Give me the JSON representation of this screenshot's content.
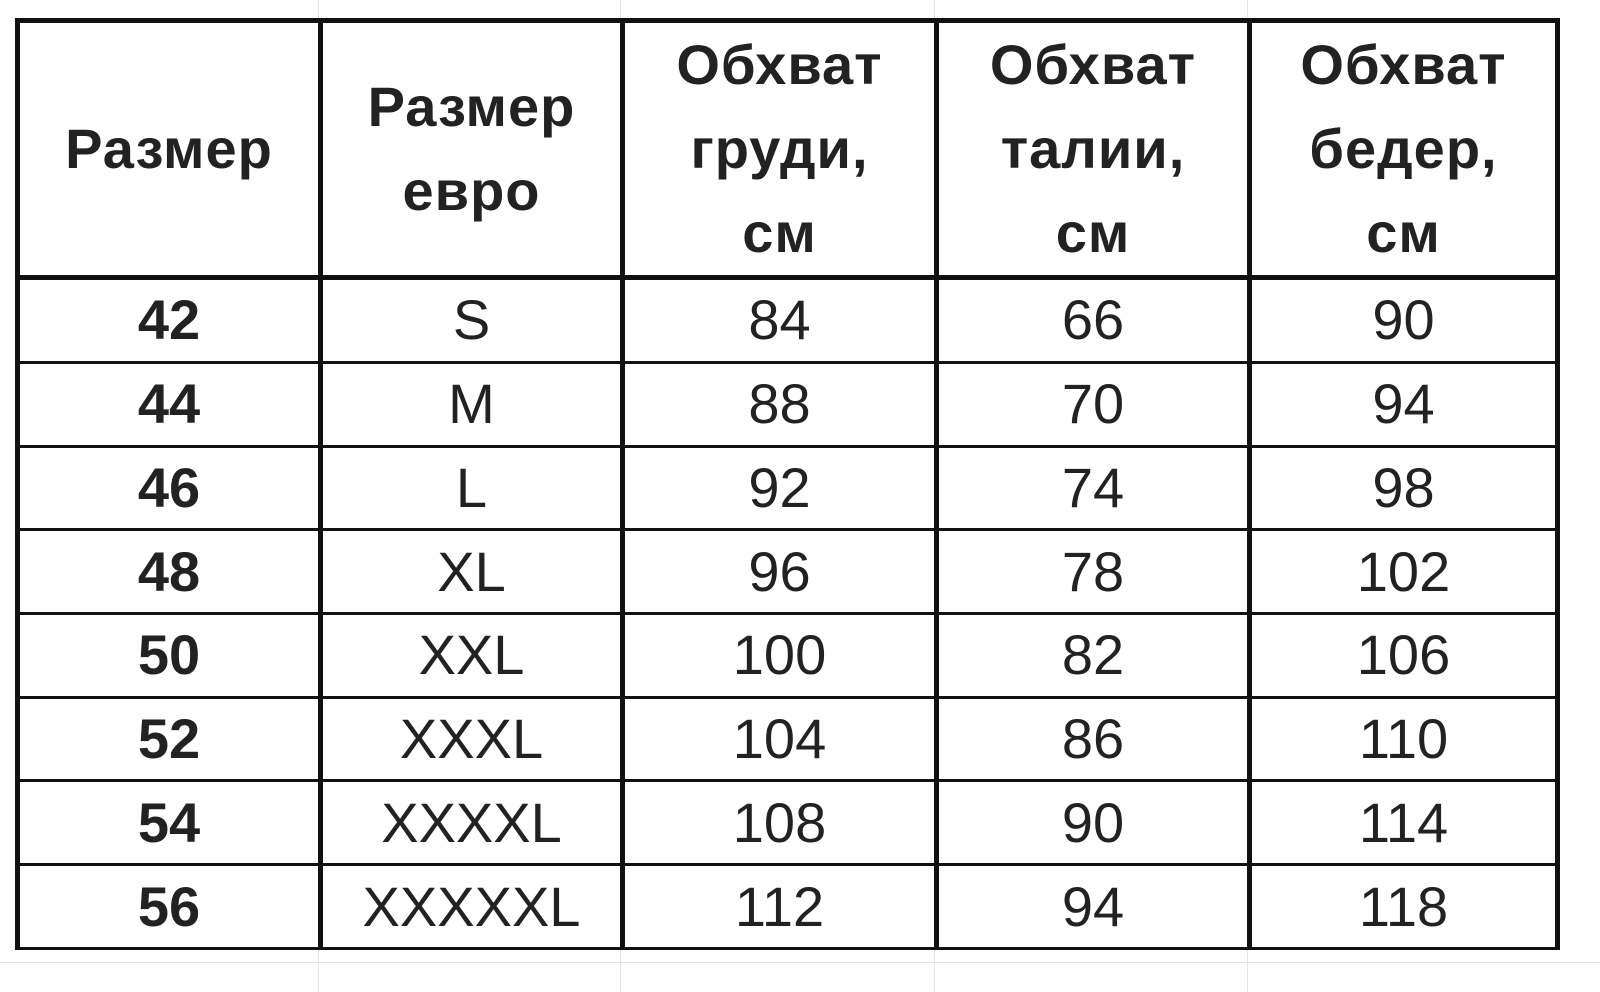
{
  "table": {
    "headers": [
      "Размер",
      "Размер евро",
      "Обхват груди, см",
      "Обхват талии, см",
      "Обхват бедер, см"
    ],
    "rows": [
      [
        "42",
        "S",
        "84",
        "66",
        "90"
      ],
      [
        "44",
        "M",
        "88",
        "70",
        "94"
      ],
      [
        "46",
        "L",
        "92",
        "74",
        "98"
      ],
      [
        "48",
        "XL",
        "96",
        "78",
        "102"
      ],
      [
        "50",
        "XXL",
        "100",
        "82",
        "106"
      ],
      [
        "52",
        "XXXL",
        "104",
        "86",
        "110"
      ],
      [
        "54",
        "XXXXL",
        "108",
        "90",
        "114"
      ],
      [
        "56",
        "XXXXXL",
        "112",
        "94",
        "118"
      ]
    ]
  }
}
